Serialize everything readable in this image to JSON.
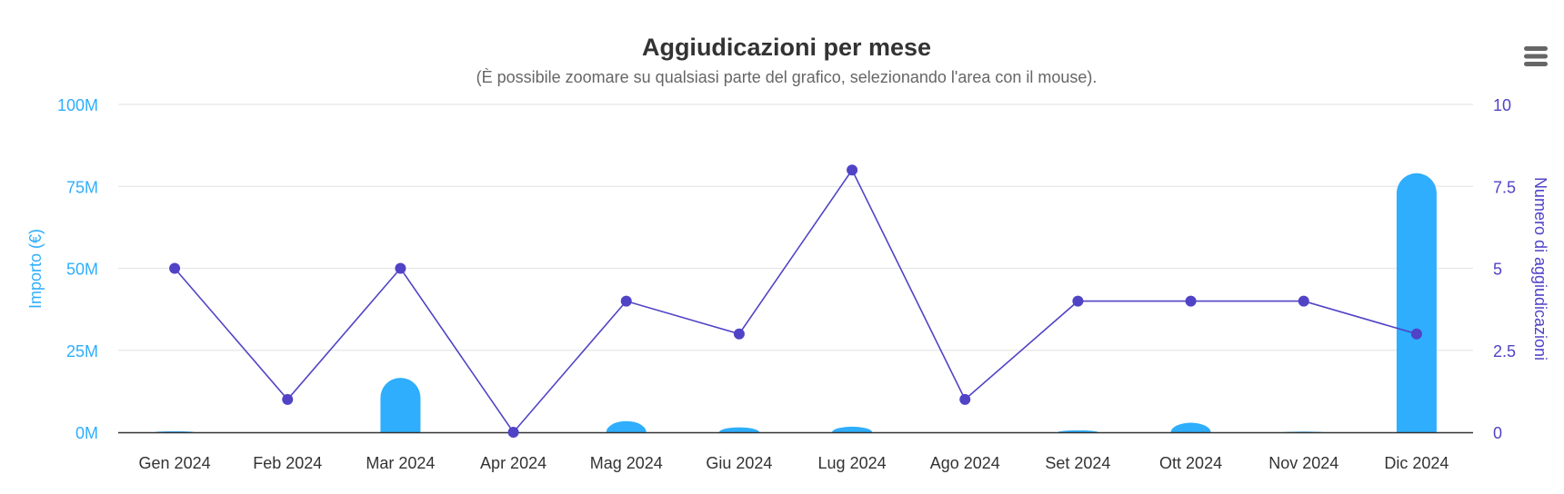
{
  "chart_data": {
    "type": "bar",
    "title": "Aggiudicazioni per mese",
    "subtitle": "(È possibile zoomare su qualsiasi parte del grafico, selezionando l'area con il mouse).",
    "categories": [
      "Gen 2024",
      "Feb 2024",
      "Mar 2024",
      "Apr 2024",
      "Mag 2024",
      "Giu 2024",
      "Lug 2024",
      "Ago 2024",
      "Set 2024",
      "Ott 2024",
      "Nov 2024",
      "Dic 2024"
    ],
    "series": [
      {
        "name": "Importo (€)",
        "type": "bar",
        "axis": "left",
        "color": "#2eaefc",
        "values": [
          300000,
          0,
          16600000,
          0,
          3400000,
          1500000,
          1700000,
          0,
          600000,
          2900000,
          200000,
          79000000
        ]
      },
      {
        "name": "Numero di aggiudicazioni",
        "type": "line",
        "axis": "right",
        "color": "#5043c6",
        "values": [
          5,
          1,
          5,
          0,
          4,
          3,
          8,
          1,
          4,
          4,
          4,
          3
        ]
      }
    ],
    "yaxis_left": {
      "label": "Importo (€)",
      "ylim": [
        0,
        100000000
      ],
      "ticks": [
        "0M",
        "25M",
        "50M",
        "75M",
        "100M"
      ],
      "color": "#2eaefc"
    },
    "yaxis_right": {
      "label": "Numero di aggiudicazioni",
      "ylim": [
        0,
        10
      ],
      "ticks": [
        "0",
        "2.5",
        "5",
        "7.5",
        "10"
      ],
      "color": "#5043c6"
    },
    "grid": true,
    "legend": "none"
  },
  "menu": {
    "icon": "hamburger-menu-icon"
  }
}
